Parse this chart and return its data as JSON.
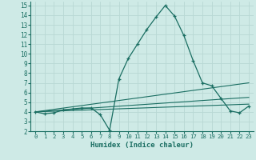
{
  "xlabel": "Humidex (Indice chaleur)",
  "bg_color": "#ceeae6",
  "grid_color": "#b8d8d4",
  "line_color": "#1a6e62",
  "xlim": [
    -0.5,
    23.5
  ],
  "ylim": [
    2,
    15.4
  ],
  "xticks": [
    0,
    1,
    2,
    3,
    4,
    5,
    6,
    7,
    8,
    9,
    10,
    11,
    12,
    13,
    14,
    15,
    16,
    17,
    18,
    19,
    20,
    21,
    22,
    23
  ],
  "yticks": [
    2,
    3,
    4,
    5,
    6,
    7,
    8,
    9,
    10,
    11,
    12,
    13,
    14,
    15
  ],
  "series1_x": [
    0,
    1,
    2,
    3,
    4,
    5,
    6,
    7,
    8,
    9,
    10,
    11,
    12,
    13,
    14,
    15,
    16,
    17,
    18,
    19,
    20,
    21,
    22,
    23
  ],
  "series1_y": [
    4.0,
    3.8,
    3.9,
    4.2,
    4.3,
    4.4,
    4.4,
    3.7,
    2.1,
    7.4,
    9.5,
    11.0,
    12.5,
    13.8,
    15.0,
    13.9,
    11.9,
    9.3,
    7.0,
    6.7,
    5.4,
    4.1,
    3.9,
    4.6
  ],
  "series2_x": [
    0,
    23
  ],
  "series2_y": [
    4.0,
    7.0
  ],
  "series3_x": [
    0,
    23
  ],
  "series3_y": [
    4.0,
    5.5
  ],
  "series4_x": [
    0,
    23
  ],
  "series4_y": [
    4.0,
    4.8
  ]
}
